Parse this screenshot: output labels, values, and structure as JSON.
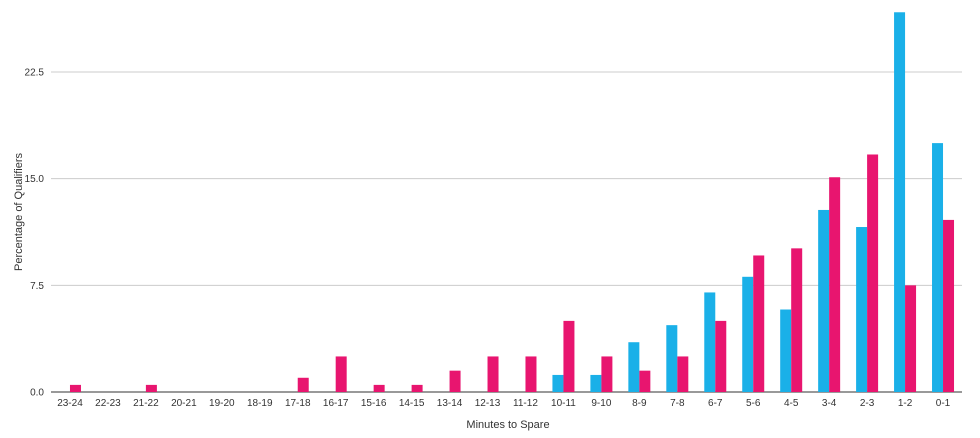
{
  "chart_data": {
    "type": "bar",
    "title": "",
    "xlabel": "Minutes to Spare",
    "ylabel": "Percentage of Qualifiers",
    "ylim": [
      0,
      27
    ],
    "yticks": [
      "0.0",
      "7.5",
      "15.0",
      "22.5"
    ],
    "grid": true,
    "legend": "none",
    "categories": [
      "23-24",
      "22-23",
      "21-22",
      "20-21",
      "19-20",
      "18-19",
      "17-18",
      "16-17",
      "15-16",
      "14-15",
      "13-14",
      "12-13",
      "11-12",
      "10-11",
      "9-10",
      "8-9",
      "7-8",
      "6-7",
      "5-6",
      "4-5",
      "3-4",
      "2-3",
      "1-2",
      "0-1"
    ],
    "series": [
      {
        "color": "#1ab0e8",
        "values": [
          0,
          0,
          0,
          0,
          0,
          0,
          0,
          0,
          0,
          0,
          0,
          0,
          0,
          1.2,
          1.2,
          3.5,
          4.7,
          7.0,
          8.1,
          5.8,
          12.8,
          11.6,
          26.7,
          17.5
        ]
      },
      {
        "color": "#e8156f",
        "values": [
          0.5,
          0,
          0.5,
          0,
          0,
          0,
          1.0,
          2.5,
          0.5,
          0.5,
          1.5,
          2.5,
          2.5,
          5.0,
          2.5,
          1.5,
          2.5,
          5.0,
          9.6,
          10.1,
          15.1,
          16.7,
          7.5,
          12.1
        ]
      }
    ]
  }
}
